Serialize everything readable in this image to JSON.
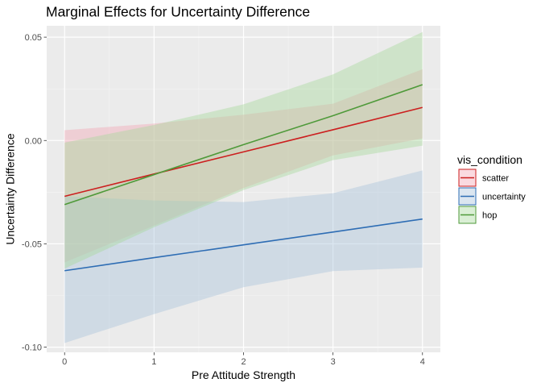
{
  "chart_data": {
    "type": "line",
    "title": "Marginal Effects for Uncertainty Difference",
    "xlabel": "Pre Attitude Strength",
    "ylabel": "Uncertainty Difference",
    "xlim": [
      -0.2,
      4.2
    ],
    "ylim": [
      -0.1025,
      0.0555
    ],
    "x_ticks": [
      0,
      1,
      2,
      3,
      4
    ],
    "x_tick_labels": [
      "0",
      "1",
      "2",
      "3",
      "4"
    ],
    "y_ticks": [
      -0.1,
      -0.05,
      0.0,
      0.05
    ],
    "y_tick_labels": [
      "-0.10",
      "-0.05",
      "0.00",
      "0.05"
    ],
    "grid": true,
    "legend": {
      "title": "vis_condition",
      "position": "right"
    },
    "x": [
      0,
      1,
      2,
      3,
      4
    ],
    "series": [
      {
        "name": "scatter",
        "color": "#cc1f1f",
        "fill": "#f4a6b4",
        "values": [
          -0.027,
          -0.0162,
          -0.0055,
          0.0052,
          0.016
        ],
        "lower": [
          -0.059,
          -0.0412,
          -0.023,
          -0.0072,
          0.001
        ],
        "upper": [
          0.005,
          0.0082,
          0.0125,
          0.0178,
          0.0345
        ]
      },
      {
        "name": "uncertainty",
        "color": "#2e6db4",
        "fill": "#a9c3dc",
        "values": [
          -0.063,
          -0.0567,
          -0.0505,
          -0.0443,
          -0.038
        ],
        "lower": [
          -0.098,
          -0.084,
          -0.071,
          -0.0632,
          -0.0615
        ],
        "upper": [
          -0.027,
          -0.029,
          -0.0298,
          -0.0255,
          -0.0145
        ]
      },
      {
        "name": "hop",
        "color": "#4f9a3a",
        "fill": "#a7d89c",
        "values": [
          -0.031,
          -0.0165,
          -0.002,
          0.012,
          0.027
        ],
        "lower": [
          -0.062,
          -0.042,
          -0.024,
          -0.0095,
          -0.0025
        ],
        "upper": [
          -0.001,
          0.0075,
          0.0175,
          0.032,
          0.0525
        ]
      }
    ]
  }
}
